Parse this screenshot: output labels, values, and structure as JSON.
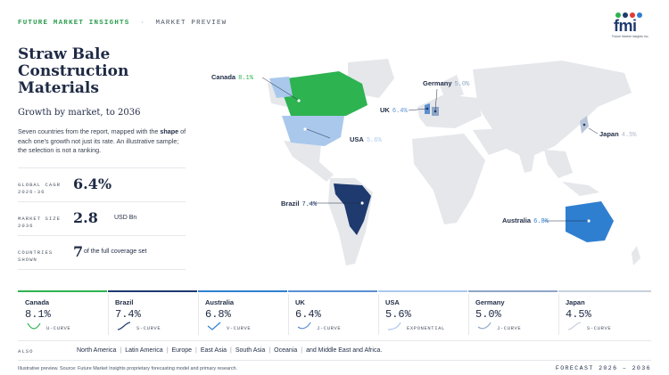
{
  "header": {
    "brand": "FUTURE MARKET INSIGHTS",
    "separator": "·",
    "section": "MARKET PREVIEW"
  },
  "logo": {
    "mark": "fmi",
    "tagline": "Future Market Insights Inc."
  },
  "title": "Straw Bale Construction Materials",
  "subtitle": "Growth by market, to 2036",
  "description": {
    "part1": "Seven countries from the report, mapped with the ",
    "emphasis": "shape",
    "part2": " of each one's growth not just its rate. An illustrative sample; the selection is not a ranking."
  },
  "stats": [
    {
      "label": "GLOBAL CAGR 2026-36",
      "value": "6.4%",
      "unit": ""
    },
    {
      "label": "MARKET SIZE 2036",
      "value": "2.8",
      "unit": "USD Bn"
    },
    {
      "label": "COUNTRIES SHOWN",
      "value": "7",
      "unit": "of the full coverage set"
    }
  ],
  "map": {
    "callouts": [
      {
        "name": "Canada",
        "pct": "8.1%",
        "color": "#2db350"
      },
      {
        "name": "Germany",
        "pct": "5.0%",
        "color": "#8fa6c6"
      },
      {
        "name": "UK",
        "pct": "6.4%",
        "color": "#5b8fd1"
      },
      {
        "name": "USA",
        "pct": "5.6%",
        "color": "#a9c8ec"
      },
      {
        "name": "Japan",
        "pct": "4.5%",
        "color": "#aeb8c8"
      },
      {
        "name": "Brazil",
        "pct": "7.4%",
        "color": "#1e3a6e"
      },
      {
        "name": "Australia",
        "pct": "6.8%",
        "color": "#2f7fd1"
      }
    ],
    "colors": {
      "land": "#e5e7eb",
      "canada": "#2db350",
      "usa": "#a9c8ec",
      "brazil": "#1e3a6e",
      "australia": "#2f7fd1",
      "uk": "#5b8fd1",
      "germany": "#8fa6c6",
      "japan": "#b9c6d8",
      "greenland": "#a9c8ec"
    }
  },
  "cards": [
    {
      "name": "Canada",
      "pct": "8.1%",
      "curve": "U-CURVE",
      "color": "#2db350"
    },
    {
      "name": "Brazil",
      "pct": "7.4%",
      "curve": "S-CURVE",
      "color": "#1e3a6e"
    },
    {
      "name": "Australia",
      "pct": "6.8%",
      "curve": "V-CURVE",
      "color": "#2f7fd1"
    },
    {
      "name": "UK",
      "pct": "6.4%",
      "curve": "J-CURVE",
      "color": "#5b8fd1"
    },
    {
      "name": "USA",
      "pct": "5.6%",
      "curve": "EXPONENTIAL",
      "color": "#a9c8ec"
    },
    {
      "name": "Germany",
      "pct": "5.0%",
      "curve": "J-CURVE",
      "color": "#8fa6c6"
    },
    {
      "name": "Japan",
      "pct": "4.5%",
      "curve": "S-CURVE",
      "color": "#c8d0dc"
    }
  ],
  "also": {
    "label": "ALSO",
    "regions": [
      "North America",
      "Latin America",
      "Europe",
      "East Asia",
      "South Asia",
      "Oceania",
      "and Middle East and Africa."
    ]
  },
  "footer": {
    "source": "Illustrative preview. Source: Future Market Insights proprietary forecasting model and primary research.",
    "forecast": "FORECAST 2026 – 2036"
  }
}
